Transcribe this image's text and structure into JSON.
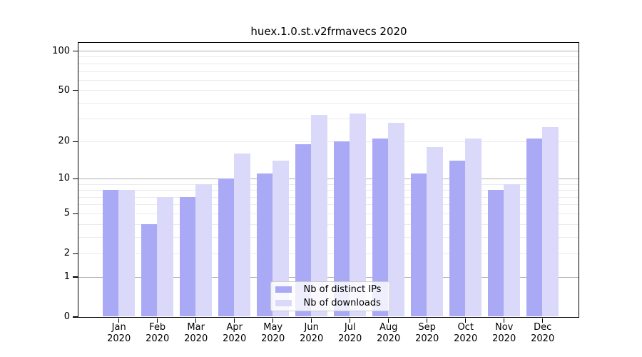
{
  "title": "huex.1.0.st.v2frmavecs 2020",
  "legend": {
    "items": [
      {
        "label": "Nb of distinct IPs"
      },
      {
        "label": "Nb of downloads"
      }
    ]
  },
  "chart_data": {
    "type": "bar",
    "title": "huex.1.0.st.v2frmavecs 2020",
    "categories": [
      "Jan 2020",
      "Feb 2020",
      "Mar 2020",
      "Apr 2020",
      "May 2020",
      "Jun 2020",
      "Jul 2020",
      "Aug 2020",
      "Sep 2020",
      "Oct 2020",
      "Nov 2020",
      "Dec 2020"
    ],
    "series": [
      {
        "name": "Nb of distinct IPs",
        "color": "#a9a9f6",
        "values": [
          8,
          4,
          7,
          10,
          11,
          19,
          20,
          21,
          11,
          14,
          8,
          21
        ]
      },
      {
        "name": "Nb of downloads",
        "color": "#dbd9fa",
        "values": [
          8,
          7,
          9,
          16,
          14,
          32,
          33,
          28,
          18,
          21,
          9,
          26
        ]
      }
    ],
    "xlabel": "",
    "ylabel": "",
    "y_axis": {
      "scale": "log1p",
      "tick_values": [
        0,
        1,
        2,
        5,
        10,
        20,
        50,
        100
      ],
      "major_gridlines": [
        1,
        10,
        100
      ],
      "minor_gridlines": [
        2,
        3,
        4,
        5,
        6,
        7,
        8,
        9,
        20,
        30,
        40,
        50,
        60,
        70,
        80,
        90
      ],
      "ylim": [
        0,
        116
      ]
    },
    "grid": true,
    "legend_position": "lower center"
  },
  "colors": {
    "bar_distinct_ips": "#a9a9f6",
    "bar_downloads": "#dbd9fa",
    "grid_major": "#b0b0b0",
    "grid_minor": "#ebebeb",
    "axis": "#000000",
    "background": "#ffffff"
  }
}
